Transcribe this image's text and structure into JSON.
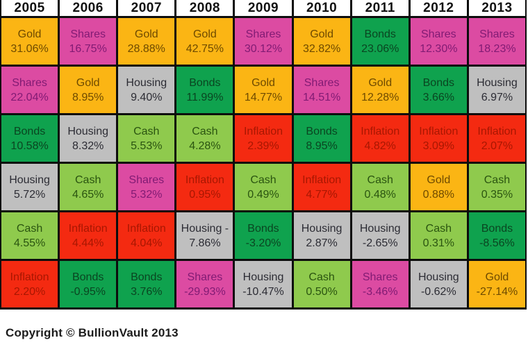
{
  "footer_text": "Copyright © BullionVault 2013",
  "palette": {
    "gold": {
      "bg": "#fbb514",
      "text": "#6e4a00"
    },
    "shares": {
      "bg": "#dc4ba2",
      "text": "#811b74"
    },
    "bonds": {
      "bg": "#0fa24e",
      "text": "#0a4521"
    },
    "housing": {
      "bg": "#bfbfbf",
      "text": "#2c2c34"
    },
    "cash": {
      "bg": "#8fca4d",
      "text": "#2a5410"
    },
    "inflation": {
      "bg": "#f42a11",
      "text": "#a81702"
    }
  },
  "chart_data": {
    "type": "table",
    "title": "Annual asset returns by year",
    "columns": [
      "2005",
      "2006",
      "2007",
      "2008",
      "2009",
      "2010",
      "2011",
      "2012",
      "2013"
    ],
    "rows": [
      [
        {
          "asset": "Gold",
          "value": "31.06%"
        },
        {
          "asset": "Shares",
          "value": "16.75%"
        },
        {
          "asset": "Gold",
          "value": "28.88%"
        },
        {
          "asset": "Gold",
          "value": "42.75%"
        },
        {
          "asset": "Shares",
          "value": "30.12%"
        },
        {
          "asset": "Gold",
          "value": "32.82%"
        },
        {
          "asset": "Bonds",
          "value": "23.06%"
        },
        {
          "asset": "Shares",
          "value": "12.30%"
        },
        {
          "asset": "Shares",
          "value": "18.23%"
        }
      ],
      [
        {
          "asset": "Shares",
          "value": "22.04%"
        },
        {
          "asset": "Gold",
          "value": "8.95%"
        },
        {
          "asset": "Housing",
          "value": "9.40%"
        },
        {
          "asset": "Bonds",
          "value": "11.99%"
        },
        {
          "asset": "Gold",
          "value": "14.77%"
        },
        {
          "asset": "Shares",
          "value": "14.51%"
        },
        {
          "asset": "Gold",
          "value": "12.28%"
        },
        {
          "asset": "Bonds",
          "value": "3.66%"
        },
        {
          "asset": "Housing",
          "value": "6.97%"
        }
      ],
      [
        {
          "asset": "Bonds",
          "value": "10.58%"
        },
        {
          "asset": "Housing",
          "value": "8.32%"
        },
        {
          "asset": "Cash",
          "value": "5.53%"
        },
        {
          "asset": "Cash",
          "value": "4.28%"
        },
        {
          "asset": "Inflation",
          "value": "2.39%"
        },
        {
          "asset": "Bonds",
          "value": "8.95%"
        },
        {
          "asset": "Inflation",
          "value": "4.82%"
        },
        {
          "asset": "Inflation",
          "value": "3.09%"
        },
        {
          "asset": "Inflation",
          "value": "2.07%"
        }
      ],
      [
        {
          "asset": "Housing",
          "value": "5.72%"
        },
        {
          "asset": "Cash",
          "value": "4.65%"
        },
        {
          "asset": "Shares",
          "value": "5.32%"
        },
        {
          "asset": "Inflation",
          "value": "0.95%"
        },
        {
          "asset": "Cash",
          "value": "0.49%"
        },
        {
          "asset": "Inflation",
          "value": "4.77%"
        },
        {
          "asset": "Cash",
          "value": "0.48%"
        },
        {
          "asset": "Gold",
          "value": "0.88%"
        },
        {
          "asset": "Cash",
          "value": "0.35%"
        }
      ],
      [
        {
          "asset": "Cash",
          "value": "4.55%"
        },
        {
          "asset": "Inflation",
          "value": "4.44%"
        },
        {
          "asset": "Inflation",
          "value": "4.04%"
        },
        {
          "asset": "Housing",
          "label": "Housing -",
          "value": "7.86%"
        },
        {
          "asset": "Bonds",
          "value": "-3.20%"
        },
        {
          "asset": "Housing",
          "value": "2.87%"
        },
        {
          "asset": "Housing",
          "value": "-2.65%"
        },
        {
          "asset": "Cash",
          "value": "0.31%"
        },
        {
          "asset": "Bonds",
          "value": "-8.56%"
        }
      ],
      [
        {
          "asset": "Inflation",
          "value": "2.20%"
        },
        {
          "asset": "Bonds",
          "value": "-0.95%"
        },
        {
          "asset": "Bonds",
          "value": "3.76%"
        },
        {
          "asset": "Shares",
          "value": "-29.93%"
        },
        {
          "asset": "Housing",
          "value": "-10.47%"
        },
        {
          "asset": "Cash",
          "value": "0.50%"
        },
        {
          "asset": "Shares",
          "value": "-3.46%"
        },
        {
          "asset": "Housing",
          "value": "-0.62%"
        },
        {
          "asset": "Gold",
          "value": "-27.14%"
        }
      ]
    ]
  }
}
